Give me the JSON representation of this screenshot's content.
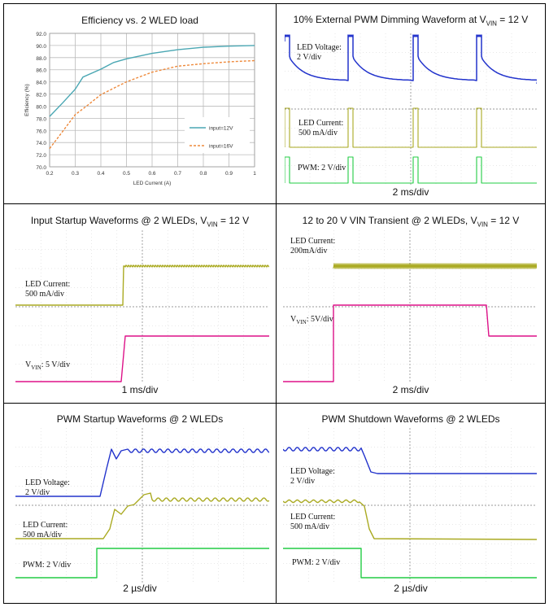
{
  "chart_data": [
    {
      "id": "efficiency",
      "type": "line",
      "title": "Efficiency vs. 2 WLED load",
      "xlabel": "LED Current (A)",
      "ylabel": "Efficiency (%)",
      "xlim": [
        0.2,
        1.0
      ],
      "ylim": [
        70.0,
        92.0
      ],
      "x_ticks": [
        "0.2",
        "0.3",
        "0.4",
        "0.5",
        "0.6",
        "0.7",
        "0.8",
        "0.9",
        "1"
      ],
      "y_ticks": [
        "70.0",
        "72.0",
        "74.0",
        "76.0",
        "78.0",
        "80.0",
        "82.0",
        "84.0",
        "86.0",
        "88.0",
        "90.0",
        "92.0"
      ],
      "legend_position": "bottom-right",
      "series": [
        {
          "name": "input=12V",
          "color": "#4aa7b3",
          "dash": "solid",
          "x": [
            0.2,
            0.25,
            0.3,
            0.33,
            0.4,
            0.45,
            0.5,
            0.6,
            0.7,
            0.8,
            0.9,
            1.0
          ],
          "y": [
            78.3,
            80.5,
            82.8,
            84.8,
            86.1,
            87.2,
            87.8,
            88.7,
            89.3,
            89.7,
            89.9,
            90.0
          ]
        },
        {
          "name": "input=16V",
          "color": "#ee8a3c",
          "dash": "dashed",
          "x": [
            0.2,
            0.25,
            0.3,
            0.35,
            0.4,
            0.5,
            0.6,
            0.7,
            0.8,
            0.9,
            1.0
          ],
          "y": [
            73.0,
            75.8,
            78.6,
            80.2,
            81.9,
            84.0,
            85.6,
            86.6,
            87.0,
            87.3,
            87.5
          ]
        }
      ]
    },
    {
      "id": "pwm-dimming",
      "type": "line",
      "title": "10% External PWM Dimming Waveform at V",
      "title_sub": "VIN",
      "title_tail": " = 12 V",
      "xlabel": "2 ms/div",
      "channels": [
        {
          "label": "LED Voltage:\n2 V/div",
          "color": "#2233cc"
        },
        {
          "label": "LED Current:\n500 mA/div",
          "color": "#aaaa22"
        },
        {
          "label": "PWM: 2 V/div",
          "color": "#22cc44"
        }
      ]
    },
    {
      "id": "input-startup",
      "type": "line",
      "title": "Input Startup Waveforms @ 2 WLEDs, V",
      "title_sub": "VIN",
      "title_tail": " = 12 V",
      "xlabel": "1 ms/div",
      "channels": [
        {
          "label": "LED Current:\n500 mA/div",
          "color": "#aaaa22"
        },
        {
          "label_pre": "V",
          "label_sub": "VIN",
          "label_tail": ": 5 V/div",
          "color": "#dd1188"
        }
      ]
    },
    {
      "id": "vin-transient",
      "type": "line",
      "title": "12 to 20 V VIN Transient @ 2 WLEDs, V",
      "title_sub": "VIN",
      "title_tail": " = 12 V",
      "xlabel": "2 ms/div",
      "channels": [
        {
          "label": "LED Current:\n200mA/div",
          "color": "#aaaa22"
        },
        {
          "label_pre": "V",
          "label_sub": "VIN",
          "label_tail": ": 5V/div",
          "color": "#dd1188"
        }
      ]
    },
    {
      "id": "pwm-startup",
      "type": "line",
      "title": "PWM Startup Waveforms @ 2 WLEDs",
      "xlabel": "2 µs/div",
      "channels": [
        {
          "label": "LED Voltage:\n2 V/div",
          "color": "#2233cc"
        },
        {
          "label": "LED Current:\n500 mA/div",
          "color": "#aaaa22"
        },
        {
          "label": "PWM: 2 V/div",
          "color": "#22cc44"
        }
      ]
    },
    {
      "id": "pwm-shutdown",
      "type": "line",
      "title": "PWM Shutdown Waveforms @ 2 WLEDs",
      "xlabel": "2 µs/div",
      "channels": [
        {
          "label": "LED Voltage:\n2 V/div",
          "color": "#2233cc"
        },
        {
          "label": "LED Current:\n500 mA/div",
          "color": "#aaaa22"
        },
        {
          "label": "PWM: 2 V/div",
          "color": "#22cc44"
        }
      ]
    }
  ]
}
